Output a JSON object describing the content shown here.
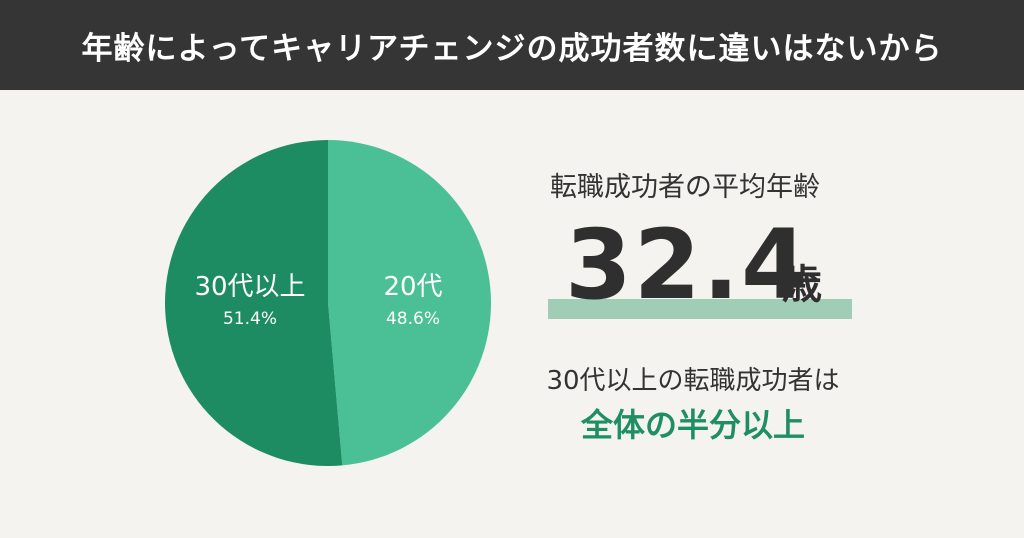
{
  "header": {
    "title": "年齢によってキャリアチェンジの成功者数に違いはないから"
  },
  "colors": {
    "header_bg": "#353535",
    "slice_30s": "#1e8c63",
    "slice_20s": "#4bbf96",
    "accent_text": "#1e8f63",
    "underline": "#9fcdb6"
  },
  "chart_data": {
    "type": "pie",
    "start": "top",
    "slices": [
      {
        "label": "20代",
        "value": 48.6,
        "value_label": "48.6%",
        "color": "#4bbf96"
      },
      {
        "label": "30代以上",
        "value": 51.4,
        "value_label": "51.4%",
        "color": "#1e8c63"
      }
    ]
  },
  "stats": {
    "avg_heading": "転職成功者の平均年齢",
    "avg_value": "32.4",
    "avg_unit": "歳",
    "note_line1": "30代以上の転職成功者は",
    "note_line2": "全体の半分以上"
  }
}
